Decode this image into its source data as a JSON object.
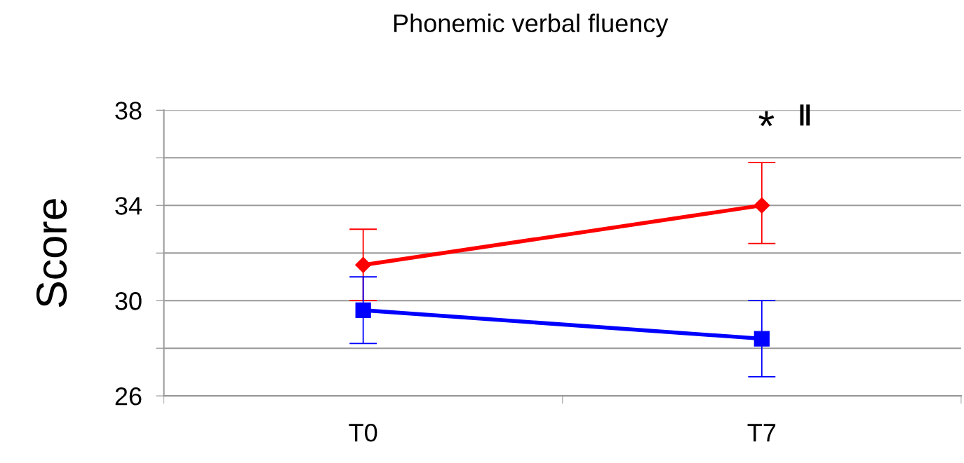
{
  "chart_data": {
    "type": "line",
    "title": "Phonemic verbal fluency",
    "ylabel": "Score",
    "categories": [
      "T0",
      "T7"
    ],
    "series": [
      {
        "color": "#ff0000",
        "marker": "diamond",
        "values": [
          31.5,
          34.0
        ],
        "errors": [
          1.5,
          [
            32.4,
            35.8
          ]
        ]
      },
      {
        "color": "#0000ff",
        "marker": "square",
        "values": [
          29.6,
          28.4
        ],
        "errors": [
          1.4,
          [
            26.8,
            30.0
          ]
        ]
      }
    ],
    "ylim": [
      26,
      38
    ],
    "yticks": [
      26,
      {
        "value": 28,
        "label": null
      },
      30,
      {
        "value": 32,
        "label": null
      },
      34,
      {
        "value": 36,
        "label": null
      },
      38
    ],
    "grid": "y",
    "legend": false,
    "annotations": [
      "*",
      "‖"
    ]
  }
}
